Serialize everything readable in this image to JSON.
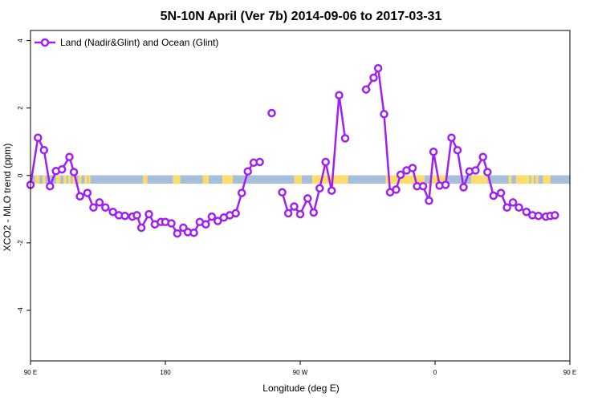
{
  "chart_data": {
    "type": "line",
    "title": "5N-10N April (Ver 7b)   2014-09-06 to 2017-03-31",
    "xlabel": "Longitude (deg E)",
    "ylabel": "XCO2 - MLO trend (ppm)",
    "xlim": [
      90,
      450
    ],
    "ylim": [
      -5.5,
      4.3
    ],
    "x_ticks": [
      {
        "value": 90,
        "label": "90 E"
      },
      {
        "value": 180,
        "label": "180"
      },
      {
        "value": 270,
        "label": "90 W"
      },
      {
        "value": 360,
        "label": "0"
      },
      {
        "value": 450,
        "label": "90 E"
      }
    ],
    "y_ticks": [
      {
        "value": 4,
        "label": "4"
      },
      {
        "value": 2,
        "label": "2"
      },
      {
        "value": 0,
        "label": "0"
      },
      {
        "value": -2,
        "label": "-2"
      },
      {
        "value": -4,
        "label": "-4"
      }
    ],
    "grid": false,
    "legend": {
      "position": "top-left"
    },
    "colors": {
      "series": "#a020f0",
      "ocean": "#a8bfdc",
      "land": "#fedc6c"
    },
    "surface_band": {
      "y_center": -0.12,
      "height": 0.25,
      "land_ranges": [
        [
          93,
          96
        ],
        [
          98,
          100
        ],
        [
          102,
          103
        ],
        [
          107,
          110
        ],
        [
          112,
          114
        ],
        [
          115,
          117
        ],
        [
          118,
          120
        ],
        [
          122,
          124
        ],
        [
          126,
          128
        ],
        [
          128.5,
          130
        ],
        [
          165,
          168
        ],
        [
          185,
          190
        ],
        [
          205,
          209
        ],
        [
          218,
          225
        ],
        [
          266,
          271
        ],
        [
          278,
          302
        ],
        [
          327,
          353
        ],
        [
          357,
          367
        ],
        [
          384,
          395
        ],
        [
          409,
          411
        ],
        [
          414,
          423
        ],
        [
          424,
          426
        ],
        [
          427,
          429
        ],
        [
          432,
          437
        ]
      ]
    },
    "series": [
      {
        "name": "Land (Nadir&Glint) and Ocean (Glint)",
        "segments": [
          [
            {
              "x": 90,
              "y": -0.28
            },
            {
              "x": 95,
              "y": 1.12
            },
            {
              "x": 99,
              "y": 0.75
            },
            {
              "x": 103,
              "y": -0.32
            },
            {
              "x": 107,
              "y": 0.13
            },
            {
              "x": 111,
              "y": 0.18
            },
            {
              "x": 116,
              "y": 0.55
            },
            {
              "x": 119,
              "y": 0.1
            },
            {
              "x": 123,
              "y": -0.62
            },
            {
              "x": 128,
              "y": -0.52
            },
            {
              "x": 132,
              "y": -0.95
            },
            {
              "x": 136,
              "y": -0.8
            },
            {
              "x": 140,
              "y": -0.95
            },
            {
              "x": 145,
              "y": -1.08
            },
            {
              "x": 149,
              "y": -1.18
            },
            {
              "x": 153,
              "y": -1.2
            },
            {
              "x": 158,
              "y": -1.22
            },
            {
              "x": 161,
              "y": -1.18
            },
            {
              "x": 164,
              "y": -1.55
            },
            {
              "x": 169,
              "y": -1.15
            },
            {
              "x": 173,
              "y": -1.45
            },
            {
              "x": 177,
              "y": -1.38
            },
            {
              "x": 180,
              "y": -1.38
            },
            {
              "x": 184,
              "y": -1.42
            },
            {
              "x": 188,
              "y": -1.72
            },
            {
              "x": 192,
              "y": -1.55
            },
            {
              "x": 195,
              "y": -1.68
            },
            {
              "x": 199,
              "y": -1.7
            },
            {
              "x": 203,
              "y": -1.38
            },
            {
              "x": 207,
              "y": -1.45
            },
            {
              "x": 211,
              "y": -1.22
            },
            {
              "x": 215,
              "y": -1.35
            },
            {
              "x": 219,
              "y": -1.25
            },
            {
              "x": 223,
              "y": -1.18
            },
            {
              "x": 227,
              "y": -1.12
            },
            {
              "x": 231,
              "y": -0.52
            },
            {
              "x": 235,
              "y": 0.12
            },
            {
              "x": 239,
              "y": 0.38
            },
            {
              "x": 243,
              "y": 0.4
            }
          ],
          [
            {
              "x": 251,
              "y": 1.85
            }
          ],
          [
            {
              "x": 258,
              "y": -0.5
            },
            {
              "x": 262,
              "y": -1.12
            },
            {
              "x": 266,
              "y": -0.92
            },
            {
              "x": 270,
              "y": -1.15
            },
            {
              "x": 275,
              "y": -0.68
            },
            {
              "x": 279,
              "y": -1.1
            },
            {
              "x": 283,
              "y": -0.38
            },
            {
              "x": 287,
              "y": 0.4
            },
            {
              "x": 291,
              "y": -0.45
            },
            {
              "x": 296,
              "y": 2.38
            },
            {
              "x": 300,
              "y": 1.1
            }
          ],
          [
            {
              "x": 314,
              "y": 2.55
            },
            {
              "x": 319,
              "y": 2.9
            },
            {
              "x": 322,
              "y": 3.18
            },
            {
              "x": 326,
              "y": 1.82
            },
            {
              "x": 330,
              "y": -0.5
            },
            {
              "x": 334,
              "y": -0.42
            },
            {
              "x": 337,
              "y": 0.02
            },
            {
              "x": 341,
              "y": 0.15
            },
            {
              "x": 345,
              "y": 0.22
            },
            {
              "x": 348,
              "y": -0.32
            },
            {
              "x": 352,
              "y": -0.32
            },
            {
              "x": 356,
              "y": -0.75
            },
            {
              "x": 359,
              "y": 0.7
            },
            {
              "x": 363,
              "y": -0.3
            },
            {
              "x": 367,
              "y": -0.28
            },
            {
              "x": 371,
              "y": 1.12
            },
            {
              "x": 375,
              "y": 0.75
            },
            {
              "x": 379,
              "y": -0.35
            },
            {
              "x": 383,
              "y": 0.12
            },
            {
              "x": 387,
              "y": 0.15
            },
            {
              "x": 392,
              "y": 0.55
            },
            {
              "x": 395,
              "y": 0.1
            },
            {
              "x": 399,
              "y": -0.6
            },
            {
              "x": 404,
              "y": -0.52
            },
            {
              "x": 408,
              "y": -0.95
            },
            {
              "x": 412,
              "y": -0.8
            },
            {
              "x": 416,
              "y": -0.95
            },
            {
              "x": 421,
              "y": -1.08
            },
            {
              "x": 425,
              "y": -1.18
            },
            {
              "x": 429,
              "y": -1.2
            },
            {
              "x": 434,
              "y": -1.22
            },
            {
              "x": 437,
              "y": -1.2
            },
            {
              "x": 440,
              "y": -1.18
            }
          ]
        ]
      }
    ]
  }
}
